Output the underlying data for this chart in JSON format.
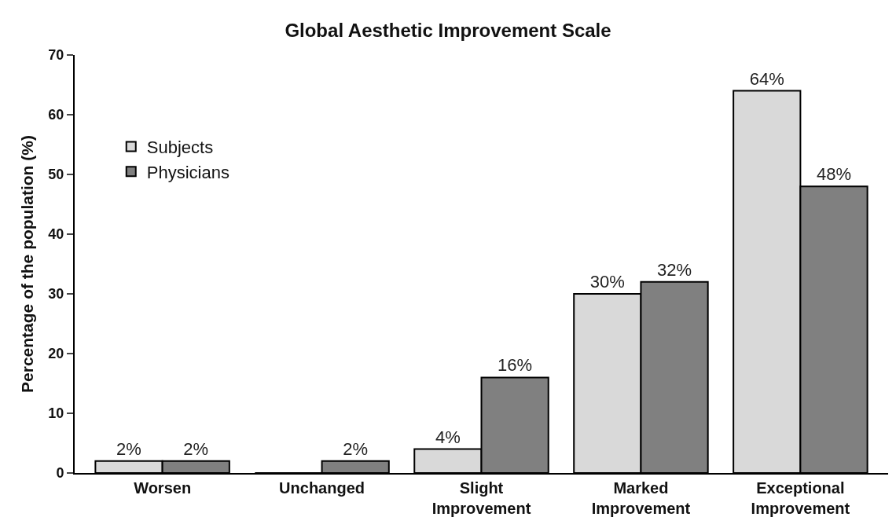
{
  "chart_data": {
    "type": "bar",
    "title": "Global Aesthetic Improvement Scale",
    "ylabel": "Percentage of the population (%)",
    "categories": [
      "Worsen",
      "Unchanged",
      "Slight Improvement",
      "Marked Improvement",
      "Exceptional Improvement"
    ],
    "series": [
      {
        "name": "Subjects",
        "color": "#d9d9d9",
        "values": [
          2,
          0,
          4,
          30,
          64
        ],
        "value_labels": [
          "2%",
          null,
          "4%",
          "30%",
          "64%"
        ]
      },
      {
        "name": "Physicians",
        "color": "#808080",
        "values": [
          2,
          2,
          16,
          32,
          48
        ],
        "value_labels": [
          "2%",
          "2%",
          "16%",
          "32%",
          "48%"
        ]
      }
    ],
    "ylim": [
      0,
      70
    ],
    "yticks": [
      0,
      10,
      20,
      30,
      40,
      50,
      60,
      70
    ],
    "legend": "top left"
  }
}
